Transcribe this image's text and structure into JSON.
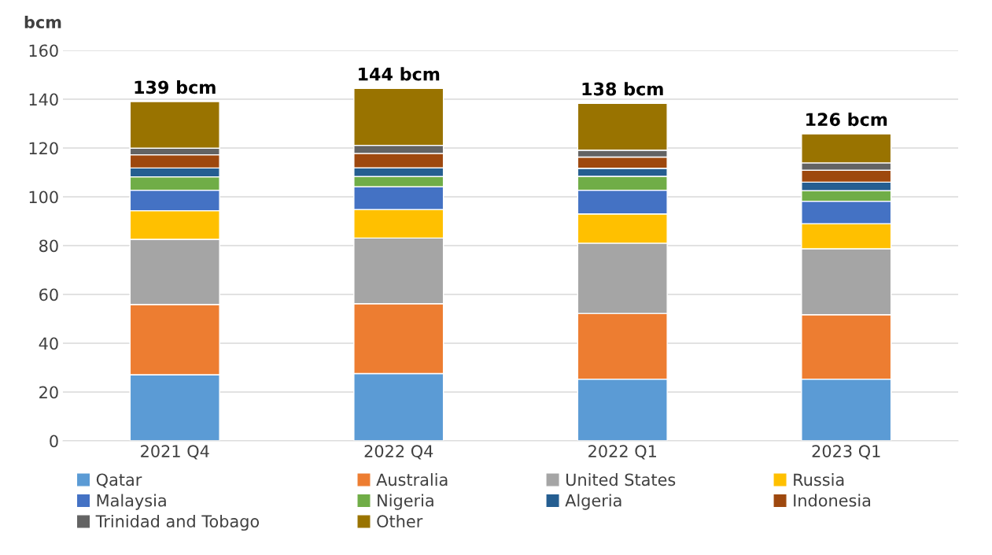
{
  "chart_data": {
    "type": "bar",
    "stacked": true,
    "ylabel": "bcm",
    "categories": [
      "2021 Q4",
      "2022 Q4",
      "2022 Q1",
      "2023 Q1"
    ],
    "series": [
      {
        "name": "Qatar",
        "color": "#5b9bd5",
        "values": [
          27.1,
          27.6,
          25.3,
          25.3
        ]
      },
      {
        "name": "Australia",
        "color": "#ed7d31",
        "values": [
          28.8,
          28.6,
          26.9,
          26.4
        ]
      },
      {
        "name": "United States",
        "color": "#a5a5a5",
        "values": [
          26.7,
          26.9,
          28.8,
          27.0
        ]
      },
      {
        "name": "Russia",
        "color": "#ffc000",
        "values": [
          11.7,
          11.7,
          12.0,
          10.3
        ]
      },
      {
        "name": "Malaysia",
        "color": "#4472c4",
        "values": [
          8.4,
          9.3,
          9.7,
          9.2
        ]
      },
      {
        "name": "Nigeria",
        "color": "#70ad47",
        "values": [
          5.5,
          4.2,
          5.7,
          4.3
        ]
      },
      {
        "name": "Algeria",
        "color": "#255e91",
        "values": [
          3.6,
          3.6,
          3.3,
          3.5
        ]
      },
      {
        "name": "Indonesia",
        "color": "#9e480e",
        "values": [
          5.4,
          5.9,
          4.6,
          4.9
        ]
      },
      {
        "name": "Trinidad and Tobago",
        "color": "#636363",
        "values": [
          2.7,
          3.3,
          2.8,
          3.0
        ]
      },
      {
        "name": "Other",
        "color": "#997300",
        "values": [
          19.1,
          23.3,
          19.2,
          11.9
        ]
      }
    ],
    "totals": [
      "139 bcm",
      "144 bcm",
      "138 bcm",
      "126 bcm"
    ],
    "ylim": [
      0,
      160
    ],
    "yticks": [
      0,
      20,
      40,
      60,
      80,
      100,
      120,
      140,
      160
    ],
    "grid": "y",
    "legend": "bottom"
  }
}
